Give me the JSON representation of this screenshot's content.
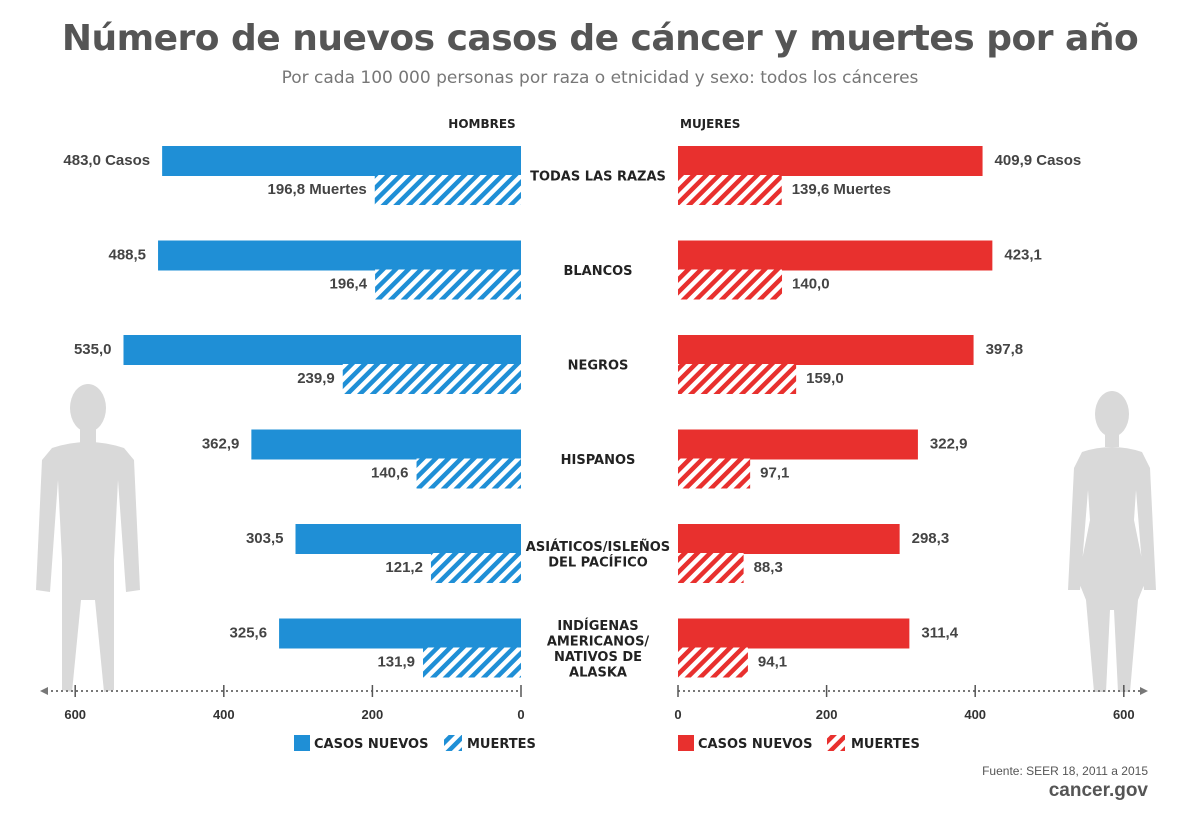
{
  "title": "Número de nuevos casos de cáncer y muertes por año",
  "subtitle": "Por cada 100 000 personas por raza o etnicidad y sexo: todos los cánceres",
  "source": "Fuente: SEER 18, 2011 a 2015",
  "site": "cancer.gov",
  "colors": {
    "men": "#1f8fd6",
    "women": "#e8302e",
    "silhouette": "#d9d9d9"
  },
  "chart_data": {
    "type": "bar",
    "orientation": "horizontal-butterfly",
    "panels": [
      {
        "name": "HOMBRES",
        "direction": "left"
      },
      {
        "name": "MUJERES",
        "direction": "right"
      }
    ],
    "categories": [
      [
        "TODAS LAS RAZAS"
      ],
      [
        "BLANCOS"
      ],
      [
        "NEGROS"
      ],
      [
        "HISPANOS"
      ],
      [
        "ASIÁTICOS/ISLEÑOS",
        "DEL PACÍFICO"
      ],
      [
        "INDÍGENAS",
        "AMERICANOS/",
        "NATIVOS DE",
        "ALASKA"
      ]
    ],
    "series": {
      "men_cases": {
        "name": "CASOS NUEVOS",
        "values": [
          483.0,
          488.5,
          535.0,
          362.9,
          303.5,
          325.6
        ]
      },
      "men_deaths": {
        "name": "MUERTES",
        "values": [
          196.8,
          196.4,
          239.9,
          140.6,
          121.2,
          131.9
        ]
      },
      "women_cases": {
        "name": "CASOS NUEVOS",
        "values": [
          409.9,
          423.1,
          397.8,
          322.9,
          298.3,
          311.4
        ]
      },
      "women_deaths": {
        "name": "MUERTES",
        "values": [
          139.6,
          140.0,
          159.0,
          97.1,
          88.3,
          94.1
        ]
      }
    },
    "label_suffix_first_row": {
      "cases": "Casos",
      "deaths": "Muertes"
    },
    "decimal_separator": ",",
    "x_ticks_men": [
      600,
      400,
      200,
      0
    ],
    "x_ticks_women": [
      0,
      200,
      400,
      600
    ],
    "xlim": [
      0,
      600
    ],
    "grid": false,
    "legend_placement": "bottom"
  }
}
